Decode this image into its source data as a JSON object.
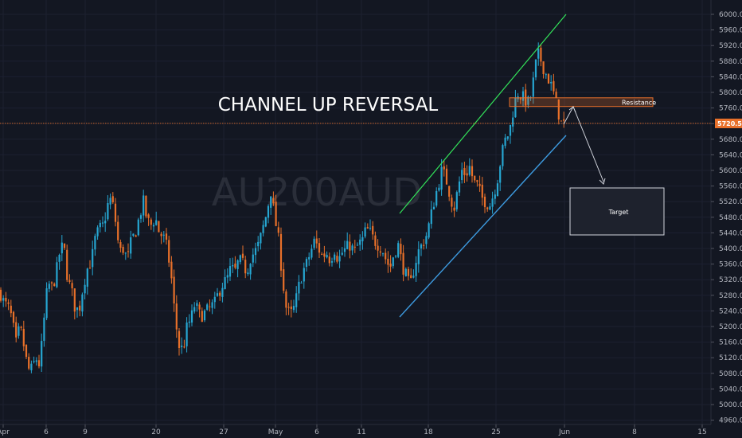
{
  "chart_data": {
    "type": "candlestick",
    "watermark": "AU200AUD",
    "watermark_sub": "",
    "title": "CHANNEL UP REVERSAL",
    "ylim": [
      4960,
      6000
    ],
    "y_ticks": [
      "6000.0",
      "5960.0",
      "5920.0",
      "5880.0",
      "5840.0",
      "5800.0",
      "5760.0",
      "5720.0",
      "5680.0",
      "5640.0",
      "5600.0",
      "5560.0",
      "5520.0",
      "5480.0",
      "5440.0",
      "5400.0",
      "5360.0",
      "5320.0",
      "5280.0",
      "5240.0",
      "5200.0",
      "5160.0",
      "5120.0",
      "5080.0",
      "5040.0",
      "5000.0",
      "4960.0"
    ],
    "x_ticks": [
      "Apr",
      "6",
      "9",
      "20",
      "27",
      "May",
      "6",
      "11",
      "18",
      "25",
      "Jun",
      "8",
      "15"
    ],
    "current_price": "5720.5",
    "current_price_value": 5720.5,
    "annotations": {
      "resistance_label": "Resistance",
      "resistance_range": [
        5770,
        5780
      ],
      "target_label": "Target"
    },
    "colors": {
      "up": "#26a6d1",
      "down": "#e8702a",
      "channel_upper": "#33e35a",
      "channel_lower": "#3d9be0",
      "price_line": "#e8702a",
      "background": "#131722"
    },
    "anchors": [
      [
        0,
        5290
      ],
      [
        5,
        5260
      ],
      [
        10,
        5250
      ],
      [
        15,
        5220
      ],
      [
        20,
        5155
      ],
      [
        25,
        5200
      ],
      [
        30,
        5150
      ],
      [
        35,
        5090
      ],
      [
        40,
        5090
      ],
      [
        45,
        5120
      ],
      [
        50,
        5100
      ],
      [
        55,
        5210
      ],
      [
        60,
        5310
      ],
      [
        65,
        5300
      ],
      [
        70,
        5330
      ],
      [
        75,
        5390
      ],
      [
        80,
        5410
      ],
      [
        85,
        5320
      ],
      [
        90,
        5290
      ],
      [
        95,
        5240
      ],
      [
        100,
        5250
      ],
      [
        105,
        5310
      ],
      [
        110,
        5350
      ],
      [
        115,
        5370
      ],
      [
        120,
        5430
      ],
      [
        125,
        5450
      ],
      [
        130,
        5460
      ],
      [
        135,
        5510
      ],
      [
        140,
        5530
      ],
      [
        145,
        5470
      ],
      [
        150,
        5390
      ],
      [
        155,
        5400
      ],
      [
        160,
        5370
      ],
      [
        165,
        5420
      ],
      [
        170,
        5440
      ],
      [
        175,
        5480
      ],
      [
        180,
        5520
      ],
      [
        185,
        5470
      ],
      [
        190,
        5460
      ],
      [
        195,
        5480
      ],
      [
        200,
        5440
      ],
      [
        205,
        5430
      ],
      [
        210,
        5400
      ],
      [
        215,
        5330
      ],
      [
        220,
        5220
      ],
      [
        225,
        5150
      ],
      [
        230,
        5140
      ],
      [
        235,
        5200
      ],
      [
        240,
        5220
      ],
      [
        245,
        5260
      ],
      [
        250,
        5230
      ],
      [
        255,
        5230
      ],
      [
        260,
        5240
      ],
      [
        265,
        5250
      ],
      [
        270,
        5260
      ],
      [
        275,
        5290
      ],
      [
        280,
        5310
      ],
      [
        285,
        5320
      ],
      [
        290,
        5350
      ],
      [
        295,
        5340
      ],
      [
        300,
        5370
      ],
      [
        305,
        5360
      ],
      [
        310,
        5340
      ],
      [
        315,
        5380
      ],
      [
        320,
        5390
      ],
      [
        325,
        5410
      ],
      [
        330,
        5450
      ],
      [
        335,
        5490
      ],
      [
        340,
        5550
      ],
      [
        345,
        5480
      ],
      [
        350,
        5420
      ],
      [
        355,
        5320
      ],
      [
        360,
        5240
      ],
      [
        365,
        5230
      ],
      [
        370,
        5250
      ],
      [
        375,
        5300
      ],
      [
        380,
        5340
      ],
      [
        385,
        5360
      ],
      [
        390,
        5390
      ],
      [
        395,
        5420
      ],
      [
        400,
        5400
      ],
      [
        405,
        5380
      ],
      [
        410,
        5390
      ],
      [
        415,
        5370
      ],
      [
        420,
        5400
      ],
      [
        425,
        5370
      ],
      [
        430,
        5390
      ],
      [
        435,
        5400
      ],
      [
        440,
        5410
      ],
      [
        445,
        5390
      ],
      [
        450,
        5410
      ],
      [
        455,
        5420
      ],
      [
        460,
        5450
      ],
      [
        465,
        5440
      ],
      [
        470,
        5420
      ],
      [
        475,
        5410
      ],
      [
        480,
        5400
      ],
      [
        485,
        5370
      ],
      [
        490,
        5350
      ],
      [
        495,
        5390
      ],
      [
        500,
        5410
      ],
      [
        505,
        5360
      ],
      [
        510,
        5330
      ],
      [
        515,
        5300
      ],
      [
        520,
        5350
      ],
      [
        525,
        5390
      ],
      [
        530,
        5410
      ],
      [
        535,
        5430
      ],
      [
        540,
        5470
      ],
      [
        545,
        5520
      ],
      [
        550,
        5560
      ],
      [
        555,
        5600
      ],
      [
        560,
        5580
      ],
      [
        565,
        5540
      ],
      [
        570,
        5500
      ],
      [
        575,
        5550
      ],
      [
        580,
        5600
      ],
      [
        585,
        5590
      ],
      [
        590,
        5610
      ],
      [
        595,
        5570
      ],
      [
        600,
        5560
      ],
      [
        605,
        5530
      ],
      [
        610,
        5520
      ],
      [
        615,
        5510
      ],
      [
        620,
        5540
      ],
      [
        625,
        5580
      ],
      [
        630,
        5640
      ],
      [
        635,
        5680
      ],
      [
        640,
        5700
      ],
      [
        645,
        5760
      ],
      [
        650,
        5800
      ],
      [
        655,
        5790
      ],
      [
        660,
        5780
      ],
      [
        665,
        5770
      ],
      [
        670,
        5830
      ],
      [
        675,
        5900
      ],
      [
        680,
        5880
      ],
      [
        685,
        5850
      ],
      [
        690,
        5830
      ],
      [
        695,
        5800
      ],
      [
        700,
        5760
      ],
      [
        705,
        5720
      ],
      [
        710,
        5720.5
      ]
    ]
  }
}
